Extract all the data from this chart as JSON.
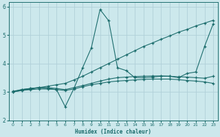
{
  "xlabel": "Humidex (Indice chaleur)",
  "bg_color": "#cce8ec",
  "grid_color": "#b0d0d8",
  "line_color": "#1a6b6b",
  "xlim": [
    -0.5,
    23.5
  ],
  "ylim": [
    2,
    6.15
  ],
  "yticks": [
    2,
    3,
    4,
    5,
    6
  ],
  "xticks": [
    0,
    1,
    2,
    3,
    4,
    5,
    6,
    7,
    8,
    9,
    10,
    11,
    12,
    13,
    14,
    15,
    16,
    17,
    18,
    19,
    20,
    21,
    22,
    23
  ],
  "series": [
    {
      "x": [
        0,
        1,
        2,
        3,
        4,
        5,
        6,
        7,
        8,
        9,
        10,
        11,
        12,
        13,
        14,
        15,
        16,
        17,
        18,
        19,
        20,
        21,
        22,
        23
      ],
      "y": [
        3.0,
        3.05,
        3.1,
        3.15,
        3.2,
        3.25,
        3.3,
        3.42,
        3.55,
        3.7,
        3.85,
        4.0,
        4.15,
        4.3,
        4.45,
        4.6,
        4.72,
        4.85,
        4.97,
        5.1,
        5.2,
        5.32,
        5.42,
        5.52
      ]
    },
    {
      "comment": "volatile line - peaks at 10=5.9, 11=5.5, dips to 6=2.5, then ends high 22=4.6, 23=5.4",
      "x": [
        0,
        1,
        2,
        3,
        4,
        5,
        6,
        7,
        8,
        9,
        10,
        11,
        12,
        13,
        14,
        15,
        16,
        17,
        18,
        19,
        20,
        21,
        22,
        23
      ],
      "y": [
        3.0,
        3.08,
        3.12,
        3.15,
        3.12,
        3.08,
        2.48,
        3.12,
        3.85,
        4.55,
        5.9,
        5.5,
        3.85,
        3.75,
        3.5,
        3.5,
        3.52,
        3.55,
        3.55,
        3.5,
        3.65,
        3.7,
        4.6,
        5.4
      ]
    },
    {
      "x": [
        0,
        1,
        2,
        3,
        4,
        5,
        6,
        7,
        8,
        9,
        10,
        11,
        12,
        13,
        14,
        15,
        16,
        17,
        18,
        19,
        20,
        21,
        22,
        23
      ],
      "y": [
        3.0,
        3.05,
        3.08,
        3.1,
        3.1,
        3.08,
        3.05,
        3.1,
        3.18,
        3.25,
        3.3,
        3.35,
        3.38,
        3.4,
        3.42,
        3.44,
        3.45,
        3.45,
        3.45,
        3.43,
        3.4,
        3.38,
        3.35,
        3.3
      ]
    },
    {
      "x": [
        0,
        1,
        2,
        3,
        4,
        5,
        6,
        7,
        8,
        9,
        10,
        11,
        12,
        13,
        14,
        15,
        16,
        17,
        18,
        19,
        20,
        21,
        22,
        23
      ],
      "y": [
        3.02,
        3.08,
        3.12,
        3.15,
        3.15,
        3.12,
        3.08,
        3.15,
        3.22,
        3.3,
        3.38,
        3.45,
        3.5,
        3.52,
        3.54,
        3.55,
        3.56,
        3.56,
        3.55,
        3.53,
        3.52,
        3.5,
        3.48,
        3.55
      ]
    }
  ]
}
